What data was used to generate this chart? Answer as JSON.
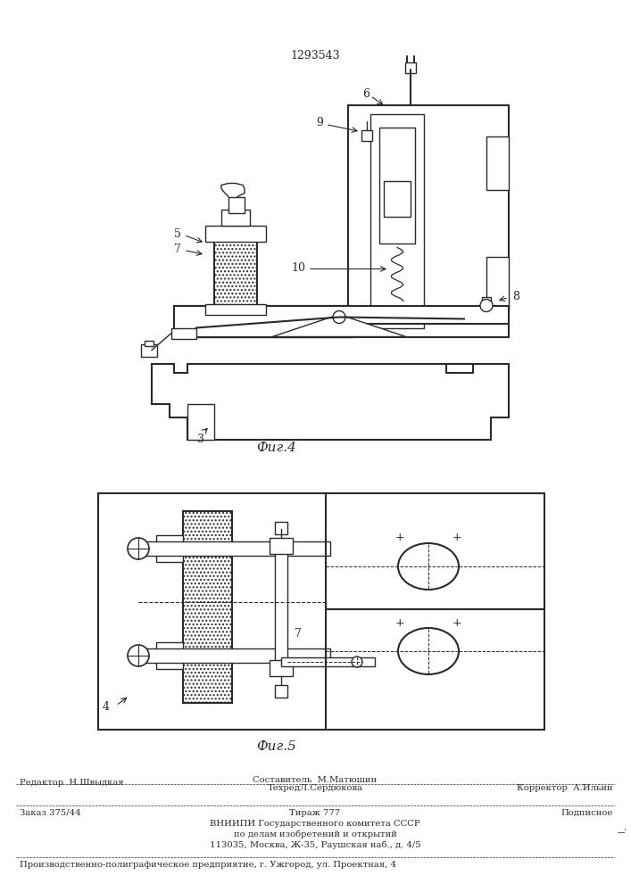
{
  "patent_number": "1293543",
  "fig4_label": "Фиг.4",
  "fig5_label": "Фиг.5",
  "line_color": "#2a2a2a",
  "footer": {
    "editor": "Редактор  Н.Швыдкая",
    "composer": "Составитель  М.Матюшин",
    "techred": "ТехредЛ.Сердюкова",
    "corrector": "Корректор  А.Ильин",
    "order": "Заказ 375/44",
    "tirazh": "Тираж 777",
    "podpisnoe": "Подписное",
    "vniip1": "ВНИИПИ Государственного комитета СССР",
    "vniip2": "по делам изобретений и открытий",
    "vniip3": "113035, Москва, Ж-35, Раушская наб., д. 4/5",
    "print": "Производственно-полиграфическое предприятие, г. Ужгород, ул. Проектная, 4"
  }
}
